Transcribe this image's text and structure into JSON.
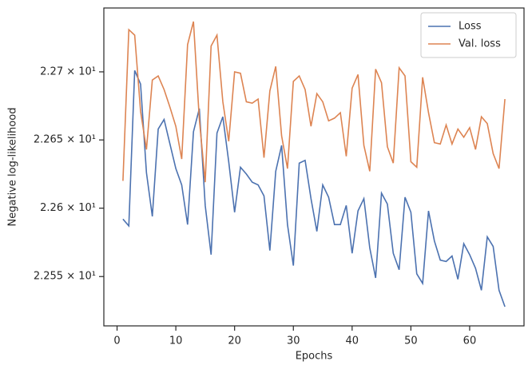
{
  "chart_data": {
    "type": "line",
    "x_label": "Epochs",
    "y_label": "Negative log-likelihood",
    "x": [
      1,
      2,
      3,
      4,
      5,
      6,
      7,
      8,
      9,
      10,
      11,
      12,
      13,
      14,
      15,
      16,
      17,
      18,
      19,
      20,
      21,
      22,
      23,
      24,
      25,
      26,
      27,
      28,
      29,
      30,
      31,
      32,
      33,
      34,
      35,
      36,
      37,
      38,
      39,
      40,
      41,
      42,
      43,
      44,
      45,
      46,
      47,
      48,
      49,
      50,
      51,
      52,
      53,
      54,
      55,
      56,
      57,
      58,
      59,
      60,
      61,
      62,
      63,
      64,
      65,
      66
    ],
    "series": [
      {
        "name": "Loss",
        "color": "#4c72b0",
        "values": [
          22.592,
          22.587,
          22.701,
          22.691,
          22.626,
          22.594,
          22.658,
          22.665,
          22.647,
          22.629,
          22.617,
          22.588,
          22.656,
          22.673,
          22.602,
          22.566,
          22.655,
          22.667,
          22.634,
          22.597,
          22.63,
          22.625,
          22.619,
          22.617,
          22.609,
          22.569,
          22.627,
          22.646,
          22.588,
          22.558,
          22.633,
          22.635,
          22.607,
          22.583,
          22.617,
          22.608,
          22.588,
          22.588,
          22.602,
          22.567,
          22.598,
          22.607,
          22.571,
          22.549,
          22.611,
          22.603,
          22.567,
          22.555,
          22.608,
          22.597,
          22.552,
          22.545,
          22.598,
          22.576,
          22.562,
          22.561,
          22.565,
          22.548,
          22.574,
          22.566,
          22.556,
          22.54,
          22.579,
          22.572,
          22.54,
          22.528
        ]
      },
      {
        "name": "Val. loss",
        "color": "#dd8452",
        "values": [
          22.62,
          22.731,
          22.727,
          22.671,
          22.643,
          22.694,
          22.697,
          22.687,
          22.674,
          22.66,
          22.636,
          22.72,
          22.737,
          22.665,
          22.619,
          22.719,
          22.727,
          22.678,
          22.649,
          22.7,
          22.699,
          22.678,
          22.677,
          22.68,
          22.637,
          22.686,
          22.704,
          22.653,
          22.629,
          22.693,
          22.697,
          22.687,
          22.66,
          22.684,
          22.678,
          22.664,
          22.666,
          22.67,
          22.638,
          22.688,
          22.698,
          22.646,
          22.627,
          22.702,
          22.692,
          22.645,
          22.633,
          22.703,
          22.697,
          22.634,
          22.63,
          22.696,
          22.67,
          22.648,
          22.647,
          22.661,
          22.647,
          22.658,
          22.652,
          22.659,
          22.643,
          22.667,
          22.662,
          22.64,
          22.629,
          22.68
        ]
      }
    ],
    "xlim": [
      -2.25,
      69.25
    ],
    "xticks": [
      0,
      10,
      20,
      30,
      40,
      50,
      60
    ],
    "ylim": [
      22.514,
      22.747
    ],
    "y_scale": "log",
    "yticks": [
      {
        "value": 22.55,
        "label": "2.255 × 10¹"
      },
      {
        "value": 22.6,
        "label": "2.26 × 10¹"
      },
      {
        "value": 22.65,
        "label": "2.265 × 10¹"
      },
      {
        "value": 22.7,
        "label": "2.27 × 10¹"
      }
    ],
    "legend": "upper right"
  }
}
